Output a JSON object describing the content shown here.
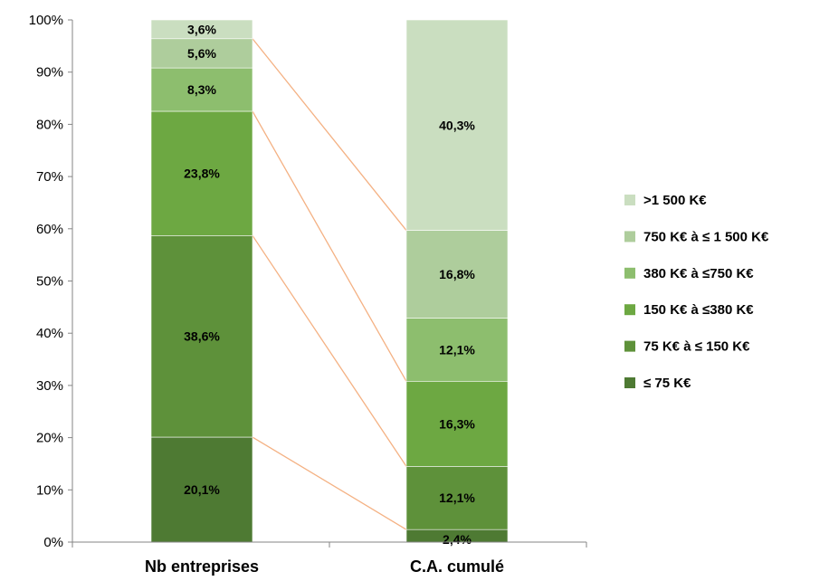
{
  "chart_data": {
    "type": "bar",
    "stacked": true,
    "categories": [
      "Nb entreprises",
      "C.A. cumulé"
    ],
    "series": [
      {
        "name": "≤ 75 K€",
        "values": [
          20.1,
          2.4
        ],
        "labels": [
          "20,1%",
          "2,4%"
        ],
        "color": "#4E7A33"
      },
      {
        "name": "75 K€ à ≤ 150 K€",
        "values": [
          38.6,
          12.1
        ],
        "labels": [
          "38,6%",
          "12,1%"
        ],
        "color": "#5E913A"
      },
      {
        "name": "150 K€ à ≤380 K€",
        "values": [
          23.8,
          16.3
        ],
        "labels": [
          "23,8%",
          "16,3%"
        ],
        "color": "#6DA842"
      },
      {
        "name": "380 K€ à ≤750 K€",
        "values": [
          8.3,
          12.1
        ],
        "labels": [
          "8,3%",
          "12,1%"
        ],
        "color": "#8DBE6E"
      },
      {
        "name": "750 K€ à ≤ 1 500 K€",
        "values": [
          5.6,
          16.8
        ],
        "labels": [
          "5,6%",
          "16,8%"
        ],
        "color": "#AECD9C"
      },
      {
        "name": ">1 500 K€",
        "values": [
          3.6,
          40.3
        ],
        "labels": [
          "3,6%",
          "40,3%"
        ],
        "color": "#CADEC0"
      }
    ],
    "ylim": [
      0,
      100
    ],
    "yticks": [
      "0%",
      "10%",
      "20%",
      "30%",
      "40%",
      "50%",
      "60%",
      "70%",
      "80%",
      "90%",
      "100%"
    ],
    "legend_position": "right",
    "connector_lines": true,
    "connector_color": "#F4B183",
    "grid": false
  }
}
